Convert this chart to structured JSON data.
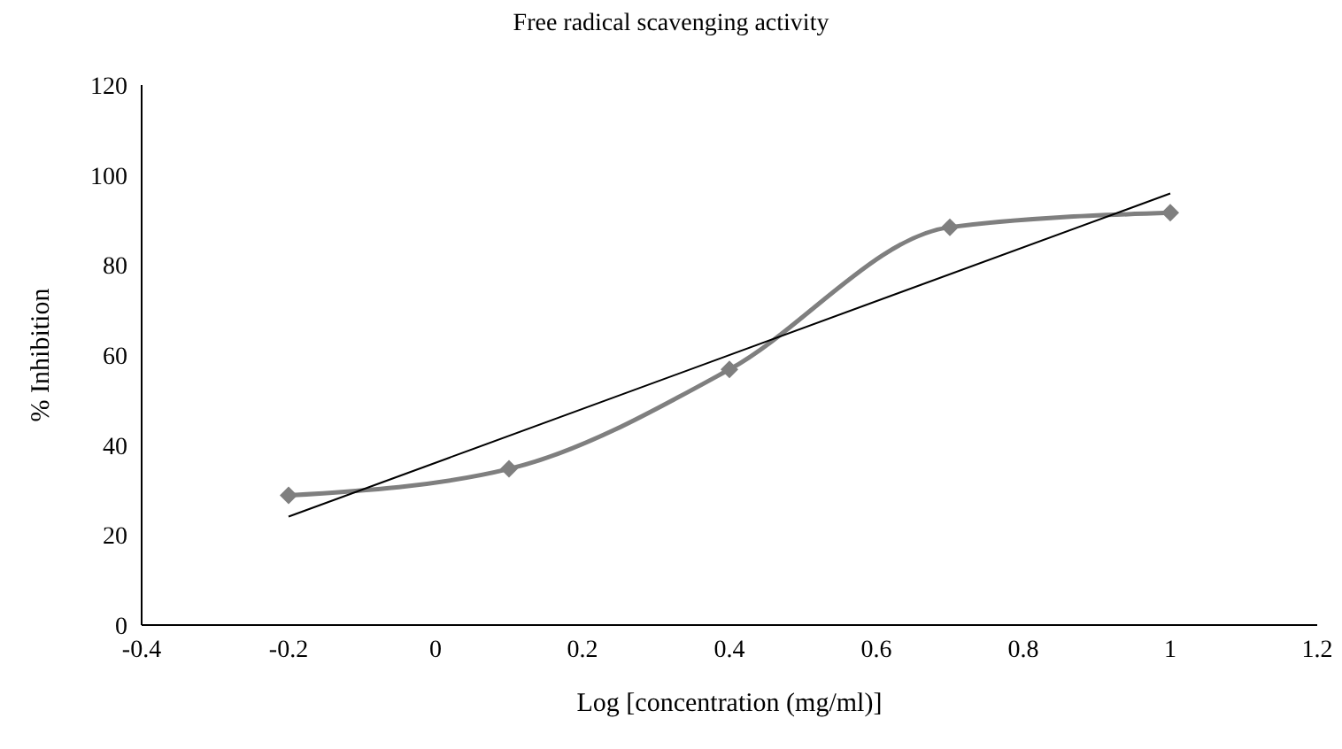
{
  "chart_data": {
    "type": "line",
    "title": "Free radical scavenging activity",
    "xlabel": "Log [concentration (mg/ml)]",
    "ylabel": "% Inhibition",
    "xlim": [
      -0.4,
      1.2
    ],
    "xticks": [
      -0.4,
      -0.2,
      0,
      0.2,
      0.4,
      0.6,
      0.8,
      1,
      1.2
    ],
    "ylim": [
      0,
      120
    ],
    "yticks": [
      0,
      20,
      40,
      60,
      80,
      100,
      120
    ],
    "grid": false,
    "legend": false,
    "series": [
      {
        "color": "#7f7f7f",
        "marker": "diamond",
        "x": [
          -0.2,
          0.1,
          0.4,
          0.7,
          1
        ],
        "values": [
          28.8,
          34.7,
          56.8,
          88.4,
          91.6
        ]
      },
      {
        "color": "#000000",
        "marker": "none",
        "x": [
          -0.2,
          1
        ],
        "values": [
          24.1,
          95.9
        ]
      }
    ]
  }
}
